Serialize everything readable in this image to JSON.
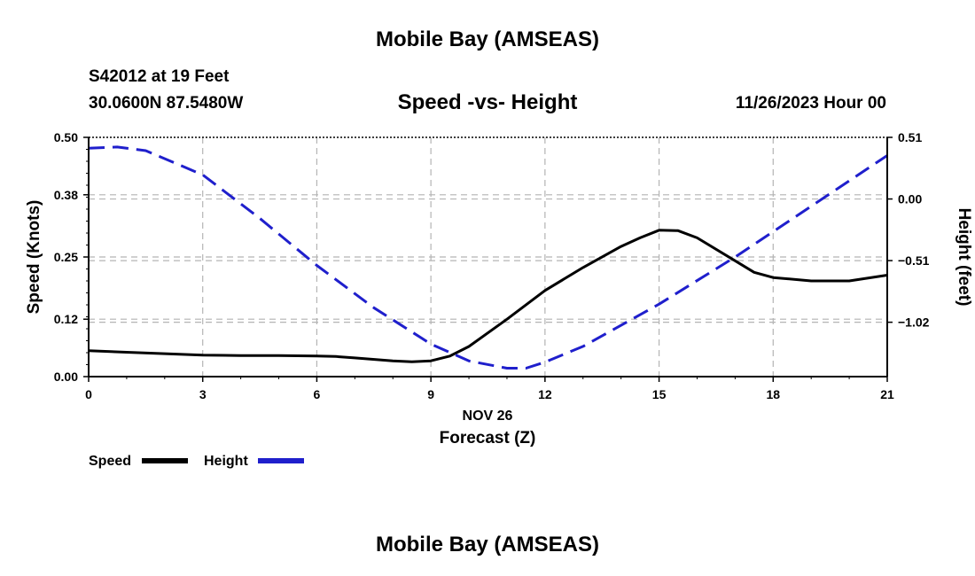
{
  "page": {
    "top_title": "Mobile Bay (AMSEAS)",
    "station": "S42012 at 19 Feet",
    "coords": "30.0600N  87.5480W",
    "subtitle": "Speed -vs- Height",
    "datetime": "11/26/2023 Hour 00",
    "bottom_title": "Mobile Bay (AMSEAS)"
  },
  "chart_data": {
    "type": "line",
    "title": "Speed -vs- Height",
    "xlabel": "Forecast (Z)",
    "xlabel_date": "NOV 26",
    "ylabel": "Speed (Knots)",
    "y2label": "Height (feet)",
    "xlim": [
      0,
      21
    ],
    "ylim": [
      0,
      0.5
    ],
    "y2lim": [
      -1.47,
      0.51
    ],
    "x_ticks": [
      0,
      3,
      6,
      9,
      12,
      15,
      18,
      21
    ],
    "y_ticks": [
      0.0,
      0.12,
      0.25,
      0.38,
      0.5
    ],
    "y_tick_labels": [
      "0.00",
      "0.12",
      "0.25",
      "0.38",
      "0.50"
    ],
    "y2_ticks": [
      0.51,
      0.0,
      -0.51,
      -1.02
    ],
    "y2_tick_labels": [
      "0.51",
      "0.00",
      "−0.51",
      "−1.02"
    ],
    "grid": true,
    "legend": [
      "Speed",
      "Height"
    ],
    "series": [
      {
        "name": "Speed",
        "axis": "left",
        "color": "#000000",
        "dash": "solid",
        "x": [
          0,
          1,
          2,
          3,
          4,
          5,
          6,
          6.5,
          7,
          8,
          8.5,
          9,
          9.5,
          10,
          11,
          12,
          13,
          14,
          14.5,
          15,
          15.5,
          16,
          17,
          17.5,
          18,
          19,
          20,
          21
        ],
        "values": [
          0.054,
          0.051,
          0.048,
          0.045,
          0.044,
          0.044,
          0.043,
          0.042,
          0.039,
          0.033,
          0.031,
          0.033,
          0.043,
          0.063,
          0.12,
          0.18,
          0.228,
          0.272,
          0.29,
          0.306,
          0.305,
          0.29,
          0.242,
          0.218,
          0.207,
          0.2,
          0.2,
          0.212
        ]
      },
      {
        "name": "Height",
        "axis": "right",
        "color": "#1f1fcc",
        "dash": "dashed",
        "x": [
          0,
          0.75,
          1.5,
          3,
          4.5,
          6,
          7.5,
          9,
          10,
          11,
          11.5,
          12,
          13,
          15,
          17,
          19,
          21
        ],
        "values": [
          0.42,
          0.43,
          0.4,
          0.2,
          -0.16,
          -0.55,
          -0.9,
          -1.2,
          -1.34,
          -1.4,
          -1.4,
          -1.35,
          -1.22,
          -0.87,
          -0.48,
          -0.06,
          0.36
        ]
      }
    ]
  }
}
